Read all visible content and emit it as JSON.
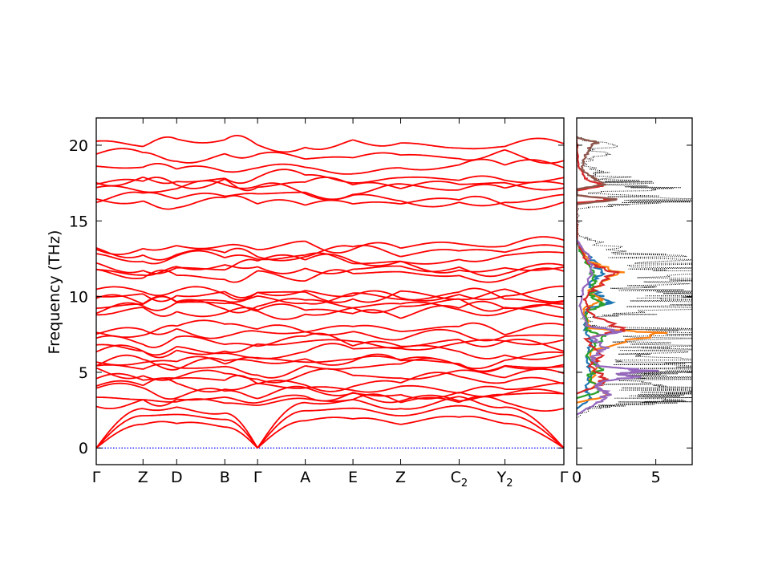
{
  "chart_data": [
    {
      "type": "line",
      "title": "",
      "ylabel": "Frequency (THz)",
      "xlabel": "",
      "ylim": [
        -1.1,
        21.8
      ],
      "y_ticks": [
        0,
        5,
        10,
        15,
        20
      ],
      "y_tick_labels": [
        "0",
        "5",
        "10",
        "15",
        "20"
      ],
      "grid": false,
      "x_tick_labels": [
        {
          "text": "Γ",
          "sub": "",
          "pos": 0.0
        },
        {
          "text": "Z",
          "sub": "",
          "pos": 0.1
        },
        {
          "text": "D",
          "sub": "",
          "pos": 0.172
        },
        {
          "text": "B",
          "sub": "",
          "pos": 0.275
        },
        {
          "text": "Γ",
          "sub": "",
          "pos": 0.345
        },
        {
          "text": "A",
          "sub": "",
          "pos": 0.447
        },
        {
          "text": "E",
          "sub": "",
          "pos": 0.549
        },
        {
          "text": "Z",
          "sub": "",
          "pos": 0.651
        },
        {
          "text": "C",
          "sub": "2",
          "pos": 0.776
        },
        {
          "text": "Y",
          "sub": "2",
          "pos": 0.874
        },
        {
          "text": "Γ",
          "sub": "",
          "pos": 1.0
        }
      ],
      "bands_color": "#ff0000",
      "zero_line_color": "#0000ff",
      "acoustic_max": {
        "Γ": 0,
        "Z": 2.6,
        "D": 2.7,
        "B": 2.3,
        "A": 3.0,
        "E": 3.2,
        "C": 3.4,
        "Y": 2.7
      },
      "optical_band_levels": [
        3.0,
        3.3,
        3.6,
        4.0,
        4.4,
        4.9,
        5.2,
        5.5,
        5.9,
        6.3,
        6.7,
        7.0,
        7.5,
        7.8,
        8.9,
        9.2,
        9.5,
        9.9,
        10.1,
        10.3,
        11.4,
        11.8,
        12.1,
        12.5,
        12.9,
        13.5,
        16.2,
        16.5,
        17.1,
        17.5,
        17.9,
        18.4,
        19.3,
        20.2
      ]
    },
    {
      "type": "line",
      "title": "",
      "xlabel": "",
      "ylabel": "",
      "xlim": [
        0,
        7.3
      ],
      "x_ticks": [
        0,
        5
      ],
      "x_tick_labels": [
        "0",
        "5"
      ],
      "series": [
        {
          "color": "#000000",
          "style": "dotted",
          "points": [
            [
              0,
              2.0
            ],
            [
              0.8,
              2.6
            ],
            [
              2.2,
              2.8
            ],
            [
              4.8,
              3.0
            ],
            [
              6.2,
              3.1
            ],
            [
              5.6,
              3.4
            ],
            [
              6.8,
              3.6
            ],
            [
              5.2,
              3.9
            ],
            [
              4.0,
              4.2
            ],
            [
              6.5,
              4.6
            ],
            [
              5.0,
              4.9
            ],
            [
              7.2,
              5.1
            ],
            [
              4.4,
              5.5
            ],
            [
              5.4,
              5.8
            ],
            [
              3.6,
              6.2
            ],
            [
              6.6,
              6.6
            ],
            [
              4.6,
              7.0
            ],
            [
              7.2,
              7.5
            ],
            [
              6.1,
              7.8
            ],
            [
              1.0,
              8.1
            ],
            [
              0.3,
              8.6
            ],
            [
              4.2,
              8.9
            ],
            [
              7.3,
              9.4
            ],
            [
              6.3,
              9.9
            ],
            [
              6.9,
              10.2
            ],
            [
              3.2,
              10.6
            ],
            [
              6.0,
              11.1
            ],
            [
              7.0,
              11.7
            ],
            [
              5.6,
              12.2
            ],
            [
              4.2,
              12.8
            ],
            [
              1.2,
              13.6
            ],
            [
              0.2,
              14.0
            ],
            [
              0.0,
              15.8
            ],
            [
              3.0,
              16.1
            ],
            [
              7.3,
              16.4
            ],
            [
              1.2,
              16.8
            ],
            [
              4.8,
              17.2
            ],
            [
              3.0,
              17.6
            ],
            [
              1.4,
              18.2
            ],
            [
              0.4,
              18.8
            ],
            [
              1.4,
              19.4
            ],
            [
              1.8,
              20.0
            ],
            [
              0.4,
              20.4
            ],
            [
              0,
              20.6
            ]
          ]
        },
        {
          "color": "#1f77b4",
          "style": "solid",
          "points": [
            [
              0,
              2.6
            ],
            [
              0.8,
              3.2
            ],
            [
              0.6,
              4.0
            ],
            [
              0.9,
              5.0
            ],
            [
              0.6,
              6.0
            ],
            [
              1.0,
              7.0
            ],
            [
              0.5,
              7.8
            ],
            [
              0.6,
              9.2
            ],
            [
              2.2,
              9.6
            ],
            [
              1.4,
              10.1
            ],
            [
              0.8,
              10.8
            ],
            [
              1.6,
              11.6
            ],
            [
              1.0,
              12.4
            ],
            [
              0.3,
              13.2
            ],
            [
              0.0,
              13.8
            ]
          ]
        },
        {
          "color": "#ff7f0e",
          "style": "solid",
          "points": [
            [
              0,
              3.0
            ],
            [
              1.8,
              3.4
            ],
            [
              0.9,
              4.4
            ],
            [
              1.2,
              5.5
            ],
            [
              0.8,
              6.4
            ],
            [
              5.5,
              7.6
            ],
            [
              0.8,
              7.9
            ],
            [
              0.4,
              9.2
            ],
            [
              1.6,
              9.8
            ],
            [
              0.8,
              10.4
            ],
            [
              2.8,
              11.6
            ],
            [
              0.8,
              12.3
            ],
            [
              0.2,
              13.4
            ],
            [
              0.0,
              13.8
            ]
          ]
        },
        {
          "color": "#2ca02c",
          "style": "solid",
          "points": [
            [
              0,
              3.3
            ],
            [
              1.4,
              3.7
            ],
            [
              0.7,
              4.8
            ],
            [
              1.6,
              5.2
            ],
            [
              0.6,
              6.1
            ],
            [
              1.8,
              7.4
            ],
            [
              0.6,
              7.8
            ],
            [
              0.6,
              9.0
            ],
            [
              1.7,
              9.5
            ],
            [
              0.9,
              10.1
            ],
            [
              1.2,
              11.0
            ],
            [
              0.9,
              11.8
            ],
            [
              0.2,
              13.0
            ],
            [
              0.0,
              13.8
            ]
          ]
        },
        {
          "color": "#d62728",
          "style": "solid",
          "points": [
            [
              0,
              3.6
            ],
            [
              1.3,
              4.1
            ],
            [
              1.8,
              4.6
            ],
            [
              0.8,
              5.4
            ],
            [
              1.6,
              6.1
            ],
            [
              0.6,
              7.2
            ],
            [
              2.9,
              7.8
            ],
            [
              0.8,
              8.9
            ],
            [
              0.5,
              9.8
            ],
            [
              1.1,
              10.5
            ],
            [
              2.5,
              11.6
            ],
            [
              0.7,
              12.2
            ],
            [
              0.2,
              13.2
            ],
            [
              0.0,
              13.8
            ],
            [
              0.0,
              16.2
            ],
            [
              2.4,
              16.4
            ],
            [
              0.0,
              16.7
            ],
            [
              0.0,
              17.0
            ],
            [
              1.6,
              17.3
            ],
            [
              0.6,
              17.8
            ],
            [
              0.1,
              18.6
            ],
            [
              0.0,
              20.4
            ]
          ]
        },
        {
          "color": "#9467bd",
          "style": "solid",
          "points": [
            [
              0,
              2.2
            ],
            [
              1.3,
              3.0
            ],
            [
              2.0,
              3.6
            ],
            [
              1.2,
              4.0
            ],
            [
              1.6,
              4.4
            ],
            [
              3.9,
              4.7
            ],
            [
              2.6,
              4.9
            ],
            [
              4.5,
              5.1
            ],
            [
              1.4,
              5.4
            ],
            [
              1.0,
              6.0
            ],
            [
              1.9,
              6.6
            ],
            [
              0.9,
              7.3
            ],
            [
              2.6,
              7.7
            ],
            [
              0.6,
              8.1
            ],
            [
              0.2,
              9.4
            ],
            [
              0.4,
              10.4
            ],
            [
              1.0,
              11.6
            ],
            [
              0.8,
              12.6
            ],
            [
              0.2,
              13.4
            ],
            [
              0.0,
              13.8
            ]
          ]
        },
        {
          "color": "#8c564b",
          "style": "solid",
          "points": [
            [
              0,
              16.1
            ],
            [
              2.5,
              16.4
            ],
            [
              0.0,
              16.7
            ],
            [
              0.0,
              17.1
            ],
            [
              1.8,
              17.4
            ],
            [
              1.0,
              17.9
            ],
            [
              0.3,
              18.4
            ],
            [
              0.5,
              19.2
            ],
            [
              0.8,
              19.8
            ],
            [
              1.3,
              20.2
            ],
            [
              0.4,
              20.4
            ],
            [
              0.0,
              20.5
            ]
          ]
        }
      ]
    }
  ]
}
